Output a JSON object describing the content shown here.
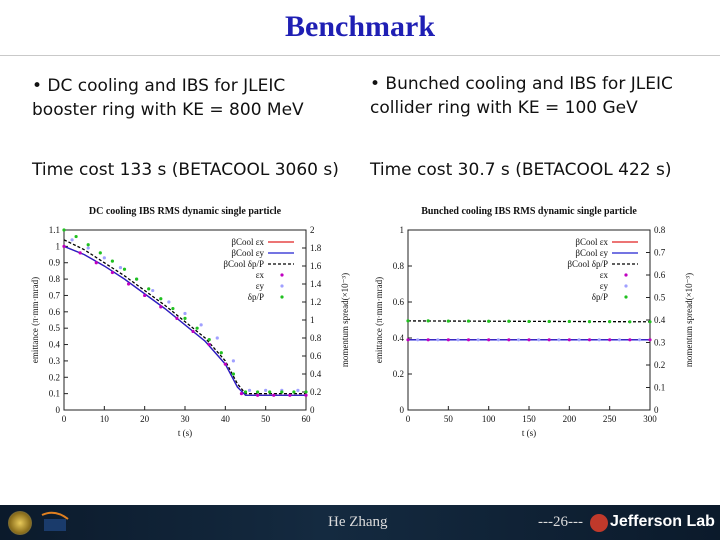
{
  "title": "Benchmark",
  "left": {
    "bullet_line1": "•  DC cooling and IBS for JLEIC",
    "bullet_line2": "booster ring with KE = 800 MeV",
    "time_cost": "Time cost 133 s (BETACOOL 3060 s)"
  },
  "right": {
    "bullet_line1": "•  Bunched cooling and IBS for JLEIC",
    "bullet_line2": "collider ring with KE = 100 GeV",
    "time_cost": "Time cost 30.7 s (BETACOOL 422 s)"
  },
  "colors": {
    "title": "#1f1fb4",
    "ex": "#e02020",
    "ey": "#2020d0",
    "dp": "#000000",
    "ex_pts": "#c000c0",
    "ey_pts": "#a0a0ff",
    "dp_pts": "#20c020"
  },
  "chart_data": [
    {
      "type": "line",
      "title": "DC cooling IBS RMS dynamic single particle",
      "xlabel": "t (s)",
      "ylabel": "emittance (π·mm·mrad)",
      "y2label": "momentum spread(×10⁻³)",
      "xlim": [
        0,
        60
      ],
      "ylim": [
        0,
        1.1
      ],
      "y2lim": [
        0,
        2
      ],
      "xticks": [
        "0",
        "10",
        "20",
        "30",
        "40",
        "50",
        "60"
      ],
      "yticks": [
        "0",
        "0.1",
        "0.2",
        "0.3",
        "0.4",
        "0.5",
        "0.6",
        "0.7",
        "0.8",
        "0.9",
        "1",
        "1.1"
      ],
      "y2ticks": [
        "0",
        "0.2",
        "0.4",
        "0.6",
        "0.8",
        "1",
        "1.2",
        "1.4",
        "1.6",
        "1.8",
        "2"
      ],
      "legend": [
        "βCool  εx",
        "βCool  εy",
        "βCool  δp/P",
        "εx",
        "εy",
        "δp/P"
      ],
      "legend_position": "top-right",
      "series": [
        {
          "name": "βCool  εx",
          "style": "line",
          "axis": "left",
          "color": "#e02020",
          "x": [
            0,
            5,
            10,
            15,
            20,
            25,
            30,
            35,
            40,
            43,
            45,
            50,
            55,
            60
          ],
          "y": [
            1.0,
            0.95,
            0.88,
            0.8,
            0.71,
            0.62,
            0.52,
            0.42,
            0.28,
            0.14,
            0.09,
            0.09,
            0.09,
            0.09
          ]
        },
        {
          "name": "βCool  εy",
          "style": "line",
          "axis": "left",
          "color": "#2020d0",
          "x": [
            0,
            5,
            10,
            15,
            20,
            25,
            30,
            35,
            40,
            43,
            45,
            50,
            55,
            60
          ],
          "y": [
            1.0,
            0.95,
            0.88,
            0.8,
            0.71,
            0.62,
            0.52,
            0.42,
            0.28,
            0.14,
            0.09,
            0.09,
            0.09,
            0.09
          ]
        },
        {
          "name": "βCool  δp/P",
          "style": "dash",
          "axis": "left",
          "color": "#000000",
          "x": [
            0,
            5,
            10,
            15,
            20,
            25,
            30,
            35,
            40,
            43,
            45,
            50,
            55,
            60
          ],
          "y": [
            1.04,
            0.98,
            0.9,
            0.82,
            0.73,
            0.64,
            0.54,
            0.44,
            0.3,
            0.16,
            0.1,
            0.1,
            0.1,
            0.1
          ]
        },
        {
          "name": "εx",
          "style": "points",
          "axis": "left",
          "color": "#c000c0",
          "x": [
            0,
            4,
            8,
            12,
            16,
            20,
            24,
            28,
            32,
            36,
            40,
            44,
            48,
            52,
            56,
            60
          ],
          "y": [
            1.0,
            0.96,
            0.9,
            0.84,
            0.77,
            0.7,
            0.63,
            0.56,
            0.48,
            0.4,
            0.28,
            0.1,
            0.09,
            0.09,
            0.09,
            0.09
          ]
        },
        {
          "name": "εy",
          "style": "points",
          "axis": "left",
          "color": "#a0a0ff",
          "x": [
            2,
            6,
            10,
            14,
            18,
            22,
            26,
            30,
            34,
            38,
            42,
            46,
            50,
            54,
            58
          ],
          "y": [
            1.04,
            0.99,
            0.93,
            0.87,
            0.8,
            0.73,
            0.66,
            0.59,
            0.52,
            0.44,
            0.3,
            0.12,
            0.12,
            0.12,
            0.12
          ]
        },
        {
          "name": "δp/P",
          "style": "points",
          "axis": "left",
          "color": "#20c020",
          "x": [
            0,
            3,
            6,
            9,
            12,
            15,
            18,
            21,
            24,
            27,
            30,
            33,
            36,
            39,
            42,
            45,
            48,
            51,
            54,
            57,
            60
          ],
          "y": [
            1.1,
            1.06,
            1.01,
            0.96,
            0.91,
            0.86,
            0.8,
            0.74,
            0.68,
            0.62,
            0.56,
            0.5,
            0.43,
            0.35,
            0.22,
            0.11,
            0.11,
            0.11,
            0.11,
            0.11,
            0.11
          ]
        }
      ]
    },
    {
      "type": "line",
      "title": "Bunched cooling IBS RMS dynamic single particle",
      "xlabel": "t (s)",
      "ylabel": "emittance (π·mm·mrad)",
      "y2label": "momentum spread(×10⁻³)",
      "xlim": [
        0,
        300
      ],
      "ylim": [
        0,
        1
      ],
      "y2lim": [
        0,
        0.8
      ],
      "xticks": [
        "0",
        "50",
        "100",
        "150",
        "200",
        "250",
        "300"
      ],
      "yticks": [
        "0",
        "0.2",
        "0.4",
        "0.6",
        "0.8",
        "1"
      ],
      "y2ticks": [
        "0",
        "0.1",
        "0.2",
        "0.3",
        "0.4",
        "0.5",
        "0.6",
        "0.7",
        "0.8"
      ],
      "legend": [
        "βCool  εx",
        "βCool  εy",
        "βCool  δp/P",
        "εx",
        "εy",
        "δp/P"
      ],
      "legend_position": "top-right",
      "series": [
        {
          "name": "βCool  εx",
          "style": "line",
          "axis": "left",
          "color": "#e02020",
          "x": [
            0,
            300
          ],
          "y": [
            0.39,
            0.39
          ]
        },
        {
          "name": "βCool  εy",
          "style": "line",
          "axis": "left",
          "color": "#2020d0",
          "x": [
            0,
            300
          ],
          "y": [
            0.39,
            0.39
          ]
        },
        {
          "name": "βCool  δp/P",
          "style": "dash",
          "axis": "left",
          "color": "#000000",
          "x": [
            0,
            300
          ],
          "y": [
            0.495,
            0.49
          ]
        },
        {
          "name": "εx",
          "style": "points",
          "axis": "left",
          "color": "#c000c0",
          "x": [
            0,
            25,
            50,
            75,
            100,
            125,
            150,
            175,
            200,
            225,
            250,
            275,
            300
          ],
          "y": [
            0.39,
            0.39,
            0.39,
            0.39,
            0.39,
            0.39,
            0.39,
            0.39,
            0.39,
            0.39,
            0.39,
            0.39,
            0.39
          ]
        },
        {
          "name": "εy",
          "style": "points",
          "axis": "left",
          "color": "#a0a0ff",
          "x": [
            12,
            37,
            62,
            87,
            112,
            137,
            162,
            187,
            212,
            237,
            262,
            287
          ],
          "y": [
            0.39,
            0.39,
            0.39,
            0.39,
            0.39,
            0.39,
            0.39,
            0.39,
            0.39,
            0.39,
            0.39,
            0.39
          ]
        },
        {
          "name": "δp/P",
          "style": "points",
          "axis": "left",
          "color": "#20c020",
          "x": [
            0,
            25,
            50,
            75,
            100,
            125,
            150,
            175,
            200,
            225,
            250,
            275,
            300
          ],
          "y": [
            0.495,
            0.495,
            0.494,
            0.494,
            0.493,
            0.493,
            0.492,
            0.492,
            0.492,
            0.491,
            0.491,
            0.49,
            0.49
          ]
        }
      ]
    }
  ],
  "footer": {
    "presenter": "He Zhang",
    "page": "---26---",
    "lab": "Jefferson Lab",
    "lab_logo_icon": "jefferson-lab-logo-icon",
    "seal_icon": "doe-seal-icon",
    "jla_icon": "jla-logo-icon"
  }
}
